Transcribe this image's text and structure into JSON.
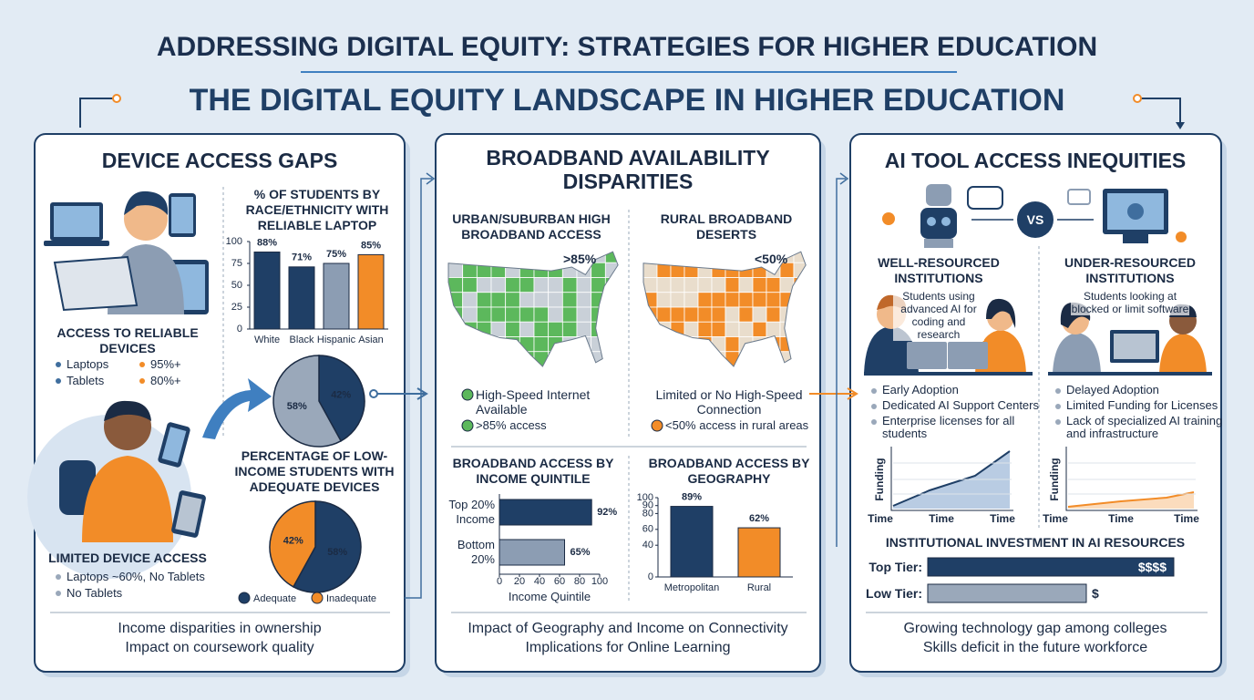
{
  "header": {
    "title": "ADDRESSING DIGITAL EQUITY: STRATEGIES FOR HIGHER EDUCATION",
    "subtitle": "THE DIGITAL EQUITY LANDSCAPE IN HIGHER EDUCATION"
  },
  "panels": [
    {
      "title": "DEVICE ACCESS GAPS",
      "access": {
        "heading": "ACCESS TO RELIABLE DEVICES",
        "items": [
          {
            "label": "Laptops",
            "value": "95%+"
          },
          {
            "label": "Tablets",
            "value": "80%+"
          }
        ]
      },
      "limited": {
        "heading": "LIMITED DEVICE ACCESS",
        "items": [
          "Laptops ~60%, No Tablets",
          "No Tablets"
        ]
      },
      "race_chart": {
        "type": "bar",
        "title": "% OF STUDENTS BY RACE/ETHNICITY WITH RELIABLE LAPTOP",
        "categories": [
          "White",
          "Black",
          "Hispanic",
          "Asian"
        ],
        "values": [
          88,
          71,
          75,
          85
        ],
        "value_labels": [
          "88%",
          "71%",
          "75%",
          "85%"
        ],
        "colors": [
          "#1f3f66",
          "#1f3f66",
          "#8c9db3",
          "#f28c28"
        ],
        "ylim": [
          0,
          100
        ],
        "yticks": [
          0,
          25,
          50,
          75,
          100
        ]
      },
      "device_pie": {
        "type": "pie",
        "values": [
          42,
          58
        ],
        "value_labels": [
          "42%",
          "58%"
        ],
        "colors": [
          "#1f3f66",
          "#9aa8ba"
        ]
      },
      "low_income_pie": {
        "type": "pie",
        "title": "PERCENTAGE OF LOW-INCOME STUDENTS WITH ADEQUATE DEVICES",
        "categories": [
          "Adequate",
          "Inadequate"
        ],
        "values": [
          58,
          42
        ],
        "value_labels": [
          "58%",
          "42%"
        ],
        "colors": [
          "#1f3f66",
          "#f28c28"
        ]
      },
      "bullets": [
        "Income disparities in ownership",
        "Impact on coursework quality"
      ]
    },
    {
      "title": "BROADBAND AVAILABILITY DISPARITIES",
      "urban": {
        "heading": "URBAN/SUBURBAN HIGH BROADBAND ACCESS",
        "badge": ">85%",
        "legend": "High-Speed Internet Available",
        "note": ">85% access",
        "color": "#5cb85c"
      },
      "rural": {
        "heading": "RURAL BROADBAND DESERTS",
        "badge": "<50%",
        "legend": "Limited or No High-Speed Connection",
        "note": "<50% access in rural areas",
        "color": "#f28c28"
      },
      "income_chart": {
        "type": "hbar",
        "title": "BROADBAND ACCESS BY INCOME QUINTILE",
        "categories": [
          "Top 20% Income",
          "Bottom 20%"
        ],
        "values": [
          92,
          65
        ],
        "value_labels": [
          "92%",
          "65%"
        ],
        "colors": [
          "#1f3f66",
          "#8c9db3"
        ],
        "xlim": [
          0,
          100
        ],
        "xticks": [
          0,
          20,
          40,
          60,
          80,
          100
        ],
        "xlabel": "Income Quintile"
      },
      "geo_chart": {
        "type": "bar",
        "title": "BROADBAND ACCESS BY GEOGRAPHY",
        "categories": [
          "Metropolitan",
          "Rural"
        ],
        "values": [
          89,
          62
        ],
        "value_labels": [
          "89%",
          "62%"
        ],
        "colors": [
          "#1f3f66",
          "#f28c28"
        ],
        "ylim": [
          0,
          100
        ],
        "yticks": [
          0,
          40,
          60,
          80,
          90,
          100
        ]
      },
      "bullets": [
        "Impact of Geography and Income on Connectivity",
        "Implications for Online Learning"
      ]
    },
    {
      "title": "AI TOOL ACCESS INEQUITIES",
      "vs": "VS",
      "well": {
        "heading": "WELL-RESOURCED INSTITUTIONS",
        "caption": "Students using advanced AI for coding and research",
        "items": [
          "Early Adoption",
          "Dedicated AI Support Centers",
          "Enterprise licenses for all students"
        ],
        "chart": {
          "ylabel": "Funding",
          "xlabels": [
            "Time",
            "Time",
            "Time"
          ]
        }
      },
      "under": {
        "heading": "UNDER-RESOURCED INSTITUTIONS",
        "caption": "Students looking at blocked or limit software",
        "items": [
          "Delayed Adoption",
          "Limited Funding for Licenses",
          "Lack of specialized AI training and infrastructure"
        ],
        "chart": {
          "ylabel": "Funding",
          "xlabels": [
            "Time",
            "Time",
            "Time"
          ]
        }
      },
      "investment": {
        "title": "INSTITUTIONAL INVESTMENT IN AI RESOURCES",
        "categories": [
          "Top Tier:",
          "Low Tier:"
        ],
        "labels": [
          "$$$$",
          "$"
        ]
      },
      "bullets": [
        "Growing technology gap among colleges",
        "Skills deficit in the future workforce"
      ]
    }
  ]
}
